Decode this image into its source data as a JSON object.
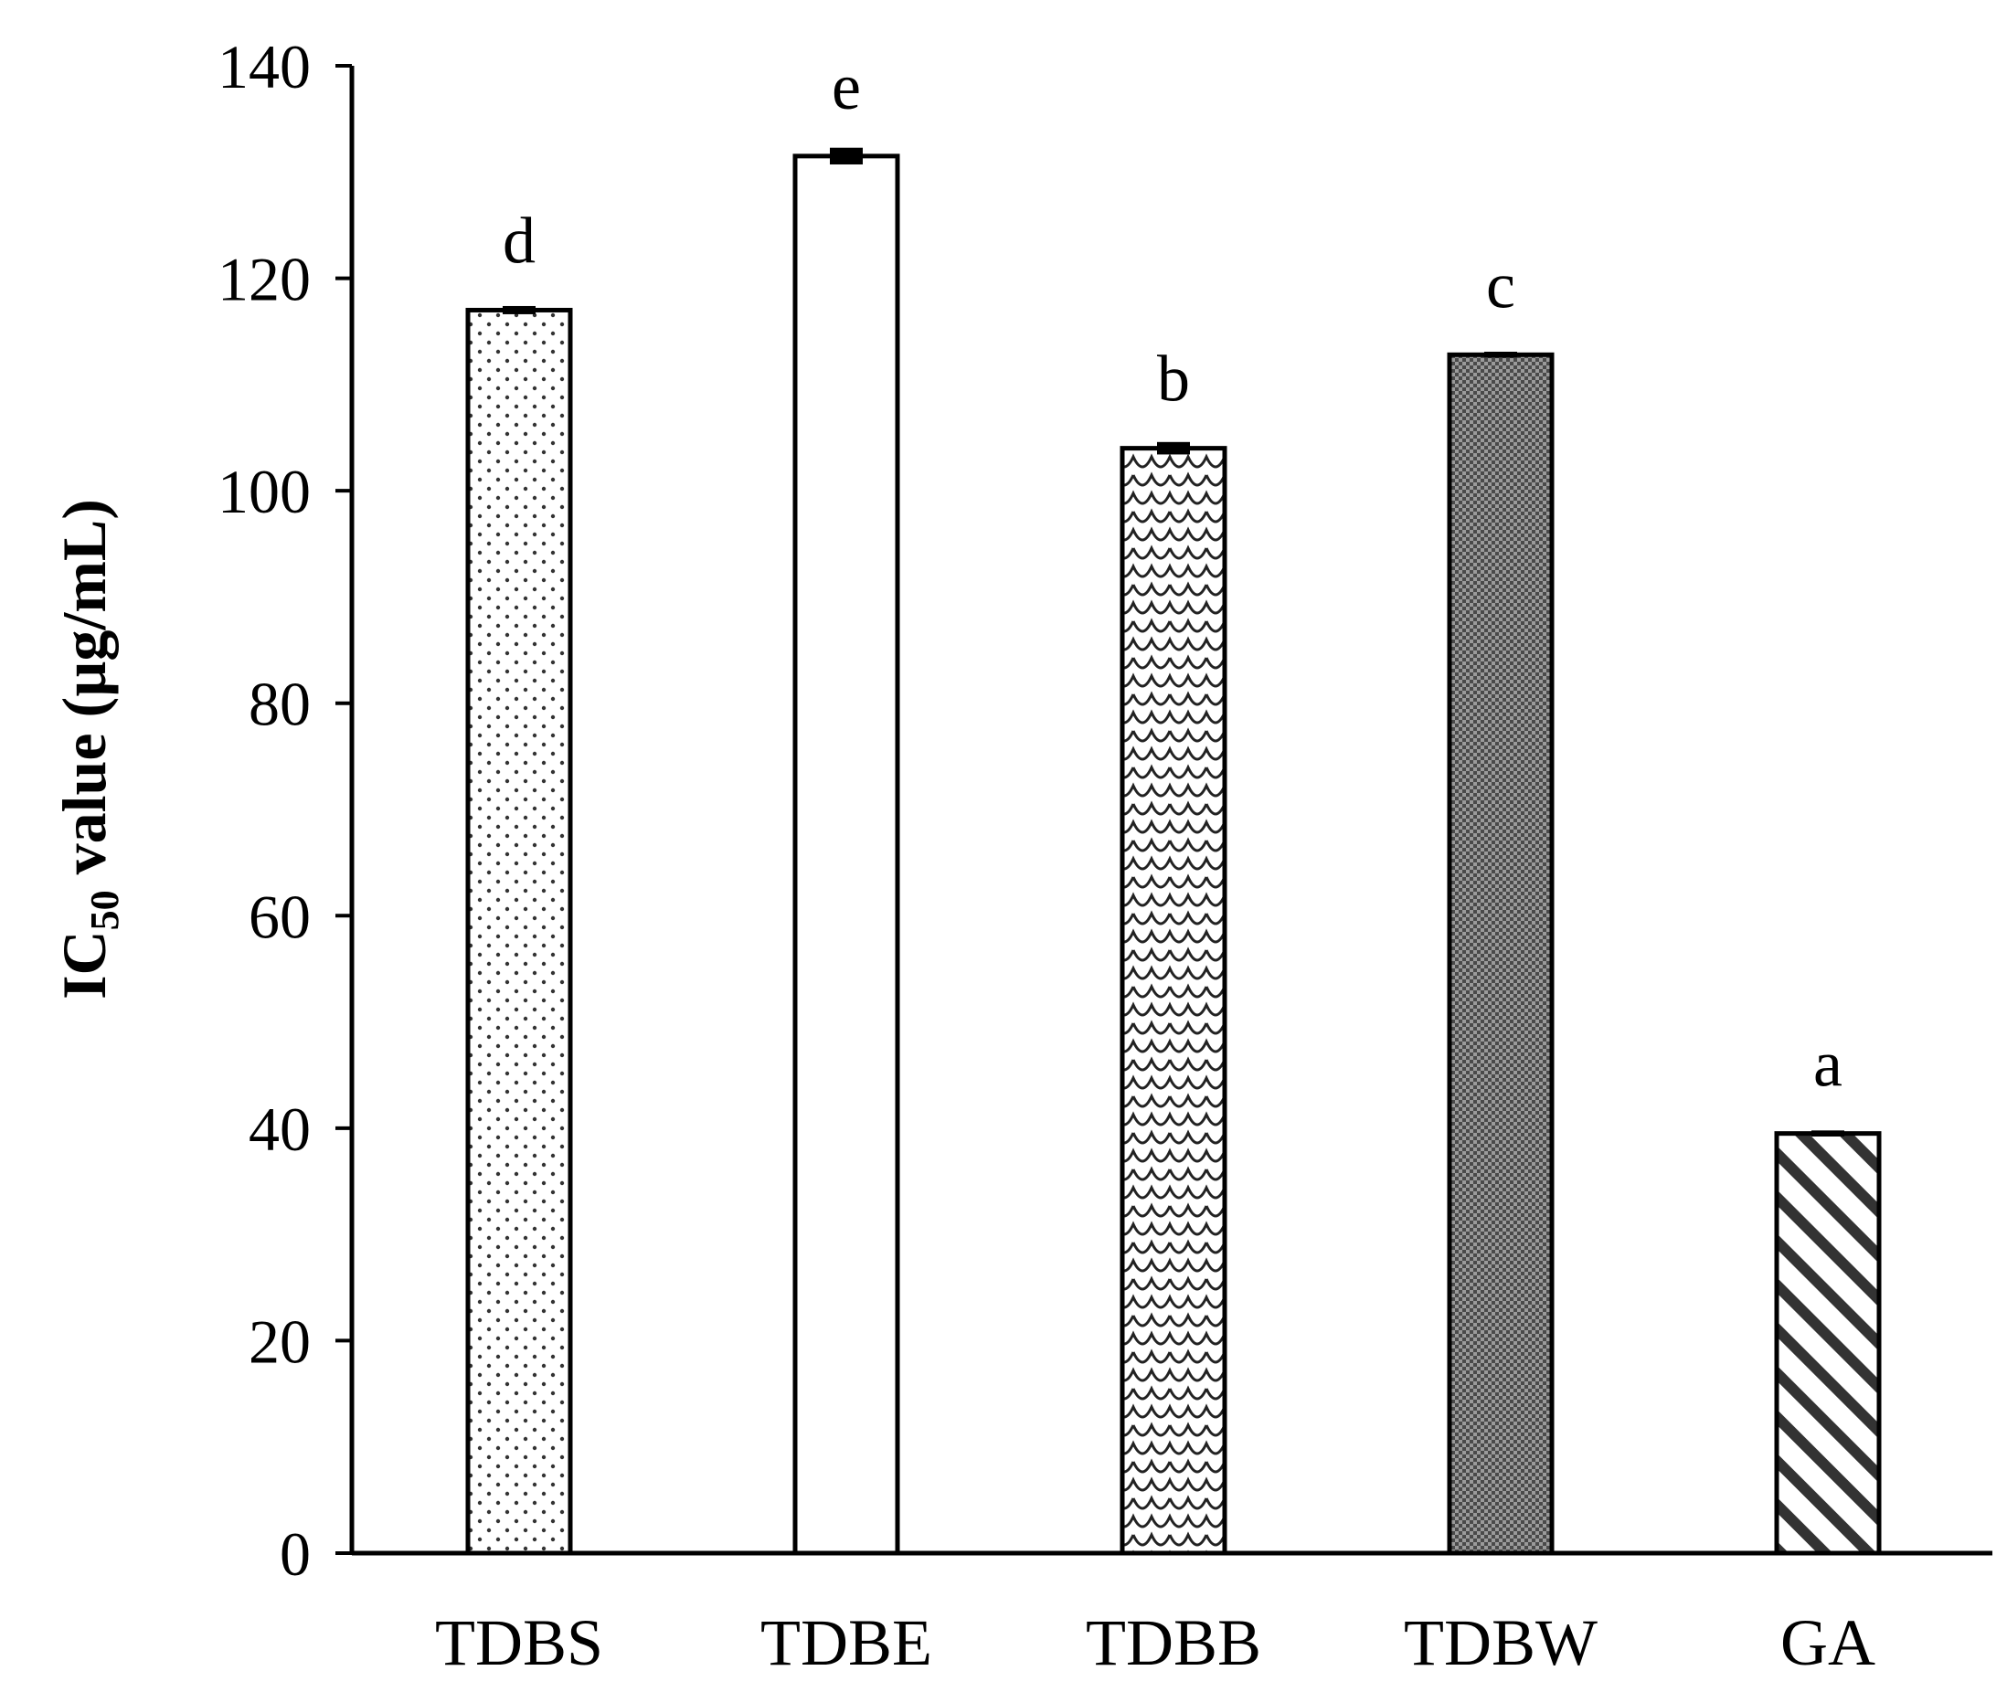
{
  "chart_data": {
    "type": "bar",
    "title": "",
    "xlabel": "",
    "ylabel": {
      "prefix": "IC",
      "subscript": "50",
      "suffix": " value (µg/mL)"
    },
    "ylim": [
      0,
      140
    ],
    "yticks": [
      "0",
      "20",
      "40",
      "60",
      "80",
      "100",
      "120",
      "140"
    ],
    "categories": [
      "TDBS",
      "TDBE",
      "TDBB",
      "TDBW",
      "GA"
    ],
    "values": [
      117,
      131.5,
      104,
      112.8,
      39.5
    ],
    "errors": [
      0.3,
      0.7,
      0.5,
      0.2,
      0.2
    ],
    "significance": [
      "d",
      "e",
      "b",
      "c",
      "a"
    ],
    "patterns": [
      "dots",
      "solid-white",
      "scallop",
      "crosshatch-dense",
      "diagonal-stripes"
    ],
    "grid": false,
    "legend": "none"
  },
  "colors": {
    "ink": "#000000",
    "background": "#ffffff",
    "pattern_fill": "#333333"
  }
}
